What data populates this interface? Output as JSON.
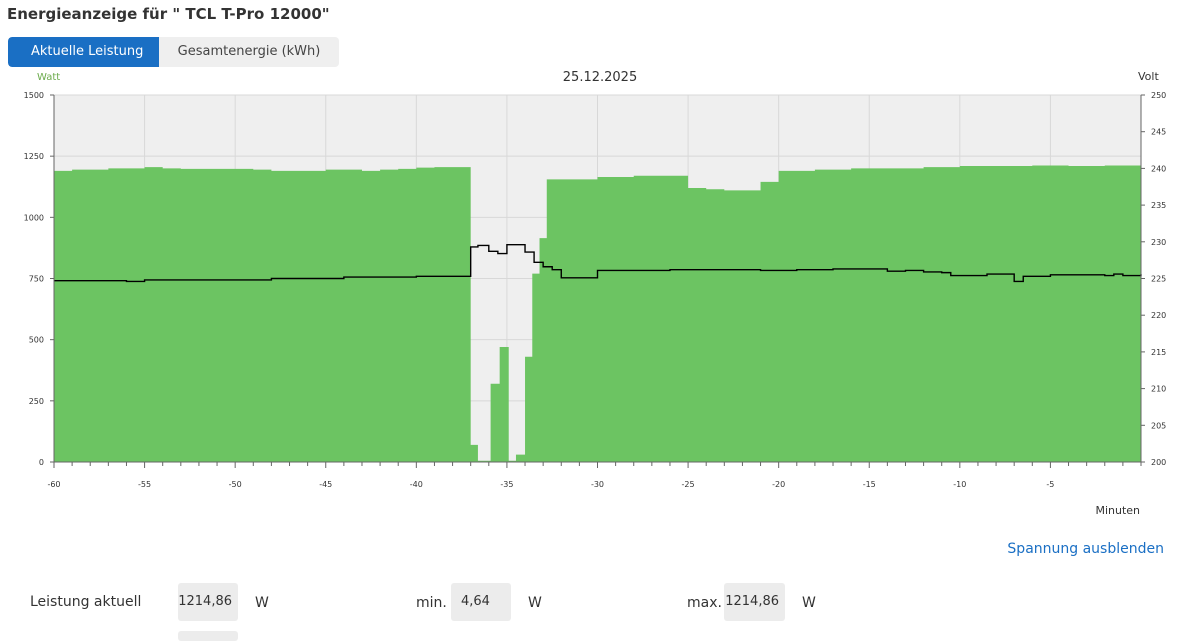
{
  "title": "Energieanzeige für \" TCL T-Pro 12000\"",
  "tabs": [
    {
      "label": "Aktuelle Leistung (Watt)",
      "active": true
    },
    {
      "label": "Gesamtenergie (kWh)",
      "active": false
    }
  ],
  "colors": {
    "power": "#6cc462",
    "voltage": "#000000",
    "plot_bg": "#efefef",
    "grid": "#d8d8d8",
    "accent": "#1a6fc4",
    "left_axis_title": "#6cab4c"
  },
  "chart_data": {
    "type": "area",
    "title": "25.12.2025",
    "xlabel": "Minuten",
    "ylabel_left": "Watt",
    "ylabel_right": "Volt",
    "xlim": [
      -60,
      0
    ],
    "ylim_left": [
      0,
      1500
    ],
    "ylim_right": [
      200,
      250
    ],
    "x_ticks": [
      -60,
      -55,
      -50,
      -45,
      -40,
      -35,
      -30,
      -25,
      -20,
      -15,
      -10,
      -5
    ],
    "y_ticks_left": [
      0,
      250,
      500,
      750,
      1000,
      1250,
      1500
    ],
    "y_ticks_right": [
      200,
      205,
      210,
      215,
      220,
      225,
      230,
      235,
      240,
      245,
      250
    ],
    "grid": true,
    "series": [
      {
        "name": "Leistung",
        "axis": "left",
        "style": "step-area",
        "x": [
          -60,
          -59,
          -57,
          -55,
          -54,
          -53,
          -49,
          -48,
          -45,
          -43,
          -42,
          -41,
          -40,
          -39,
          -38,
          -37,
          -37,
          -36.6,
          -36.6,
          -35.9,
          -35.9,
          -35.4,
          -35.4,
          -34.9,
          -34.9,
          -34.5,
          -34.5,
          -34.0,
          -34.0,
          -33.6,
          -33.6,
          -33.2,
          -33.2,
          -32.8,
          -32.8,
          -32.4,
          -32.4,
          -30,
          -28,
          -27,
          -26,
          -25,
          -24,
          -23,
          -22,
          -21,
          -20,
          -18,
          -16,
          -14,
          -12,
          -10,
          -8,
          -6,
          -4,
          -2,
          0
        ],
        "y": [
          1190,
          1195,
          1200,
          1205,
          1200,
          1198,
          1195,
          1190,
          1195,
          1190,
          1195,
          1198,
          1203,
          1205,
          1205,
          1205,
          70,
          70,
          5,
          5,
          320,
          320,
          470,
          470,
          5,
          5,
          30,
          30,
          430,
          430,
          770,
          770,
          915,
          915,
          1155,
          1155,
          1155,
          1165,
          1170,
          1170,
          1170,
          1120,
          1115,
          1110,
          1110,
          1145,
          1190,
          1195,
          1200,
          1200,
          1205,
          1210,
          1210,
          1212,
          1210,
          1212,
          1214.86
        ]
      },
      {
        "name": "Spannung",
        "axis": "right",
        "style": "step-line",
        "x": [
          -60,
          -57,
          -56,
          -55,
          -54,
          -50,
          -48,
          -44,
          -40,
          -39,
          -37.0,
          -37.0,
          -36.6,
          -36.0,
          -35.5,
          -35.0,
          -34.0,
          -33.5,
          -33.0,
          -32.5,
          -32.0,
          -30.0,
          -26.0,
          -21.0,
          -19.0,
          -17.0,
          -14.0,
          -13.0,
          -12.0,
          -11.0,
          -10.5,
          -8.5,
          -7.0,
          -6.5,
          -5.0,
          -3.0,
          -2.0,
          -1.5,
          -1.0,
          0
        ],
        "y": [
          224.7,
          224.7,
          224.6,
          224.8,
          224.8,
          224.8,
          225.0,
          225.2,
          225.3,
          225.3,
          225.3,
          229.3,
          229.5,
          228.7,
          228.4,
          229.6,
          228.6,
          227.2,
          226.6,
          226.2,
          225.1,
          226.1,
          226.2,
          226.1,
          226.2,
          226.3,
          226.0,
          226.1,
          225.9,
          225.8,
          225.4,
          225.6,
          224.6,
          225.3,
          225.5,
          225.5,
          225.4,
          225.6,
          225.4,
          225.6
        ]
      }
    ]
  },
  "voltage_toggle": "Spannung ausblenden",
  "stats": {
    "current_label": "Leistung aktuell",
    "current_value": "1214,86",
    "current_unit": "W",
    "min_label": "min.",
    "min_value": "4,64",
    "min_unit": "W",
    "max_label": "max.",
    "max_value": "1214,86",
    "max_unit": "W"
  }
}
